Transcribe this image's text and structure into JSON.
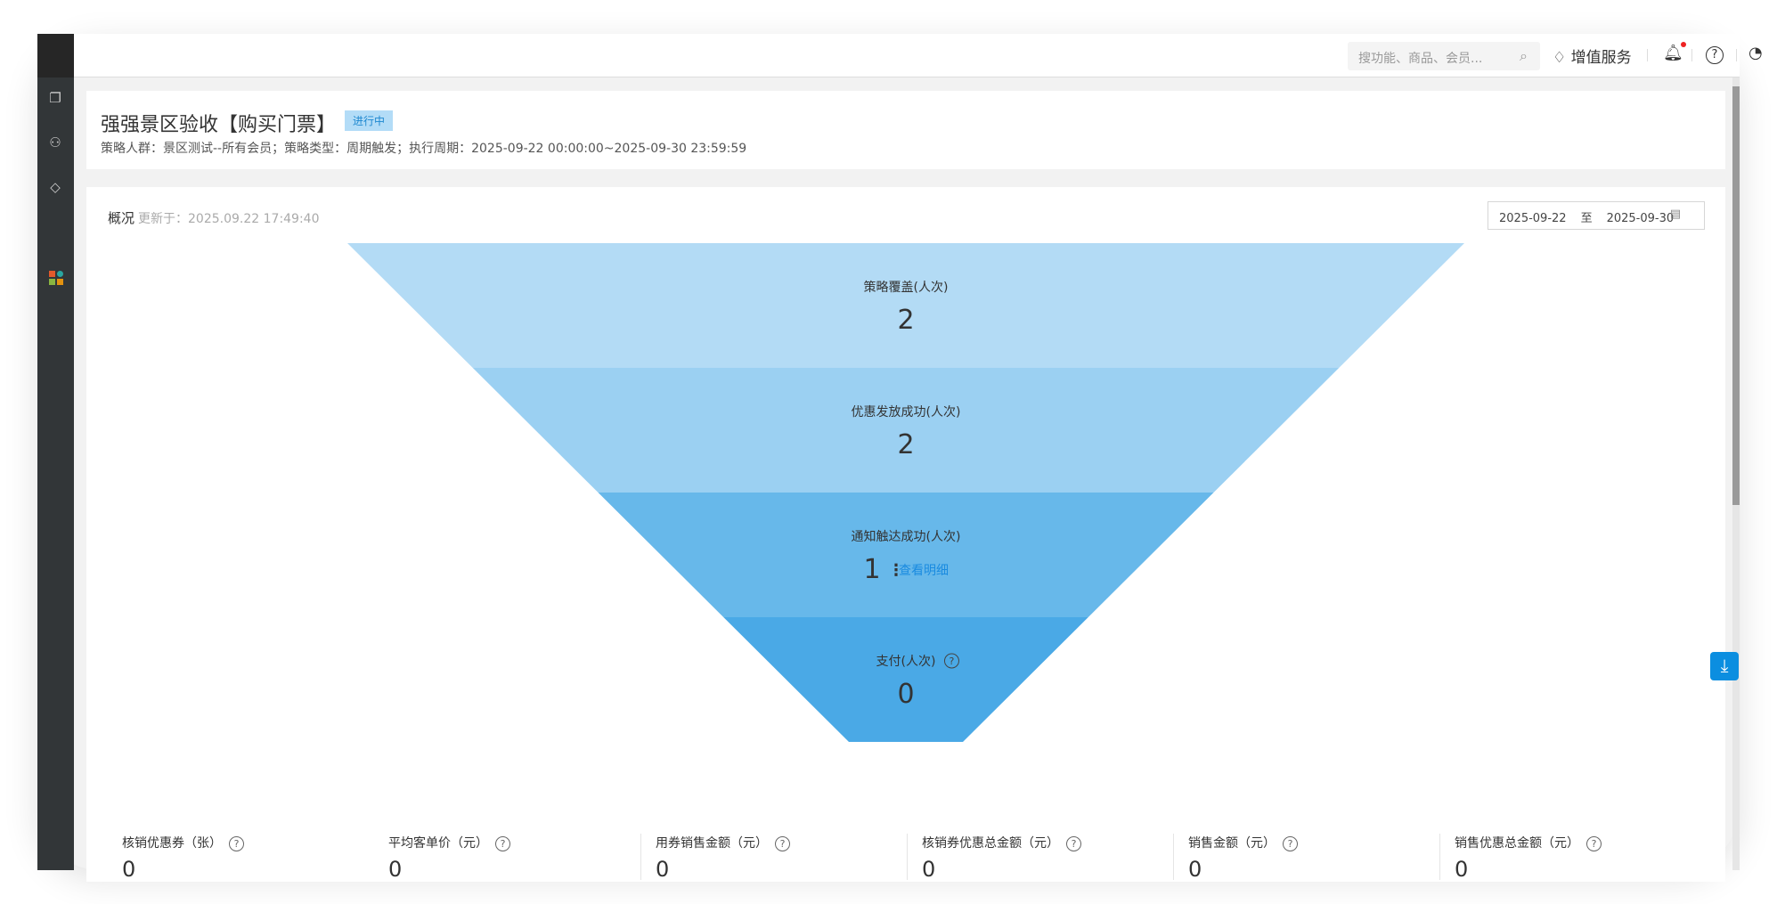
{
  "header": {
    "search_placeholder": "搜功能、商品、会员...",
    "value_added": "增值服务"
  },
  "strategy": {
    "title": "强强景区验收【购买门票】",
    "status": "进行中",
    "meta": "策略人群：景区测试--所有会员；策略类型：周期触发；执行周期：2025-09-22 00:00:00~2025-09-30 23:59:59"
  },
  "overview": {
    "title": "概况",
    "updated": "更新于：2025.09.22 17:49:40",
    "date_start": "2025-09-22",
    "date_sep": "至",
    "date_end": "2025-09-30"
  },
  "chart_data": {
    "type": "funnel",
    "stages": [
      {
        "label": "策略覆盖(人次)",
        "value": 2
      },
      {
        "label": "优惠发放成功(人次)",
        "value": 2
      },
      {
        "label": "通知触达成功(人次)",
        "value": 1,
        "link": "查看明细"
      },
      {
        "label": "支付(人次)",
        "value": 0,
        "help": true
      }
    ],
    "colors": [
      "#b3dbf5",
      "#9bd0f2",
      "#67b8ea",
      "#4aa9e6"
    ]
  },
  "stats": [
    {
      "label": "核销优惠券（张）",
      "value": "0"
    },
    {
      "label": "平均客单价（元）",
      "value": "0"
    },
    {
      "label": "用券销售金额（元）",
      "value": "0"
    },
    {
      "label": "核销券优惠总金额（元）",
      "value": "0"
    },
    {
      "label": "销售金额（元）",
      "value": "0"
    },
    {
      "label": "销售优惠总金额（元）",
      "value": "0"
    }
  ]
}
